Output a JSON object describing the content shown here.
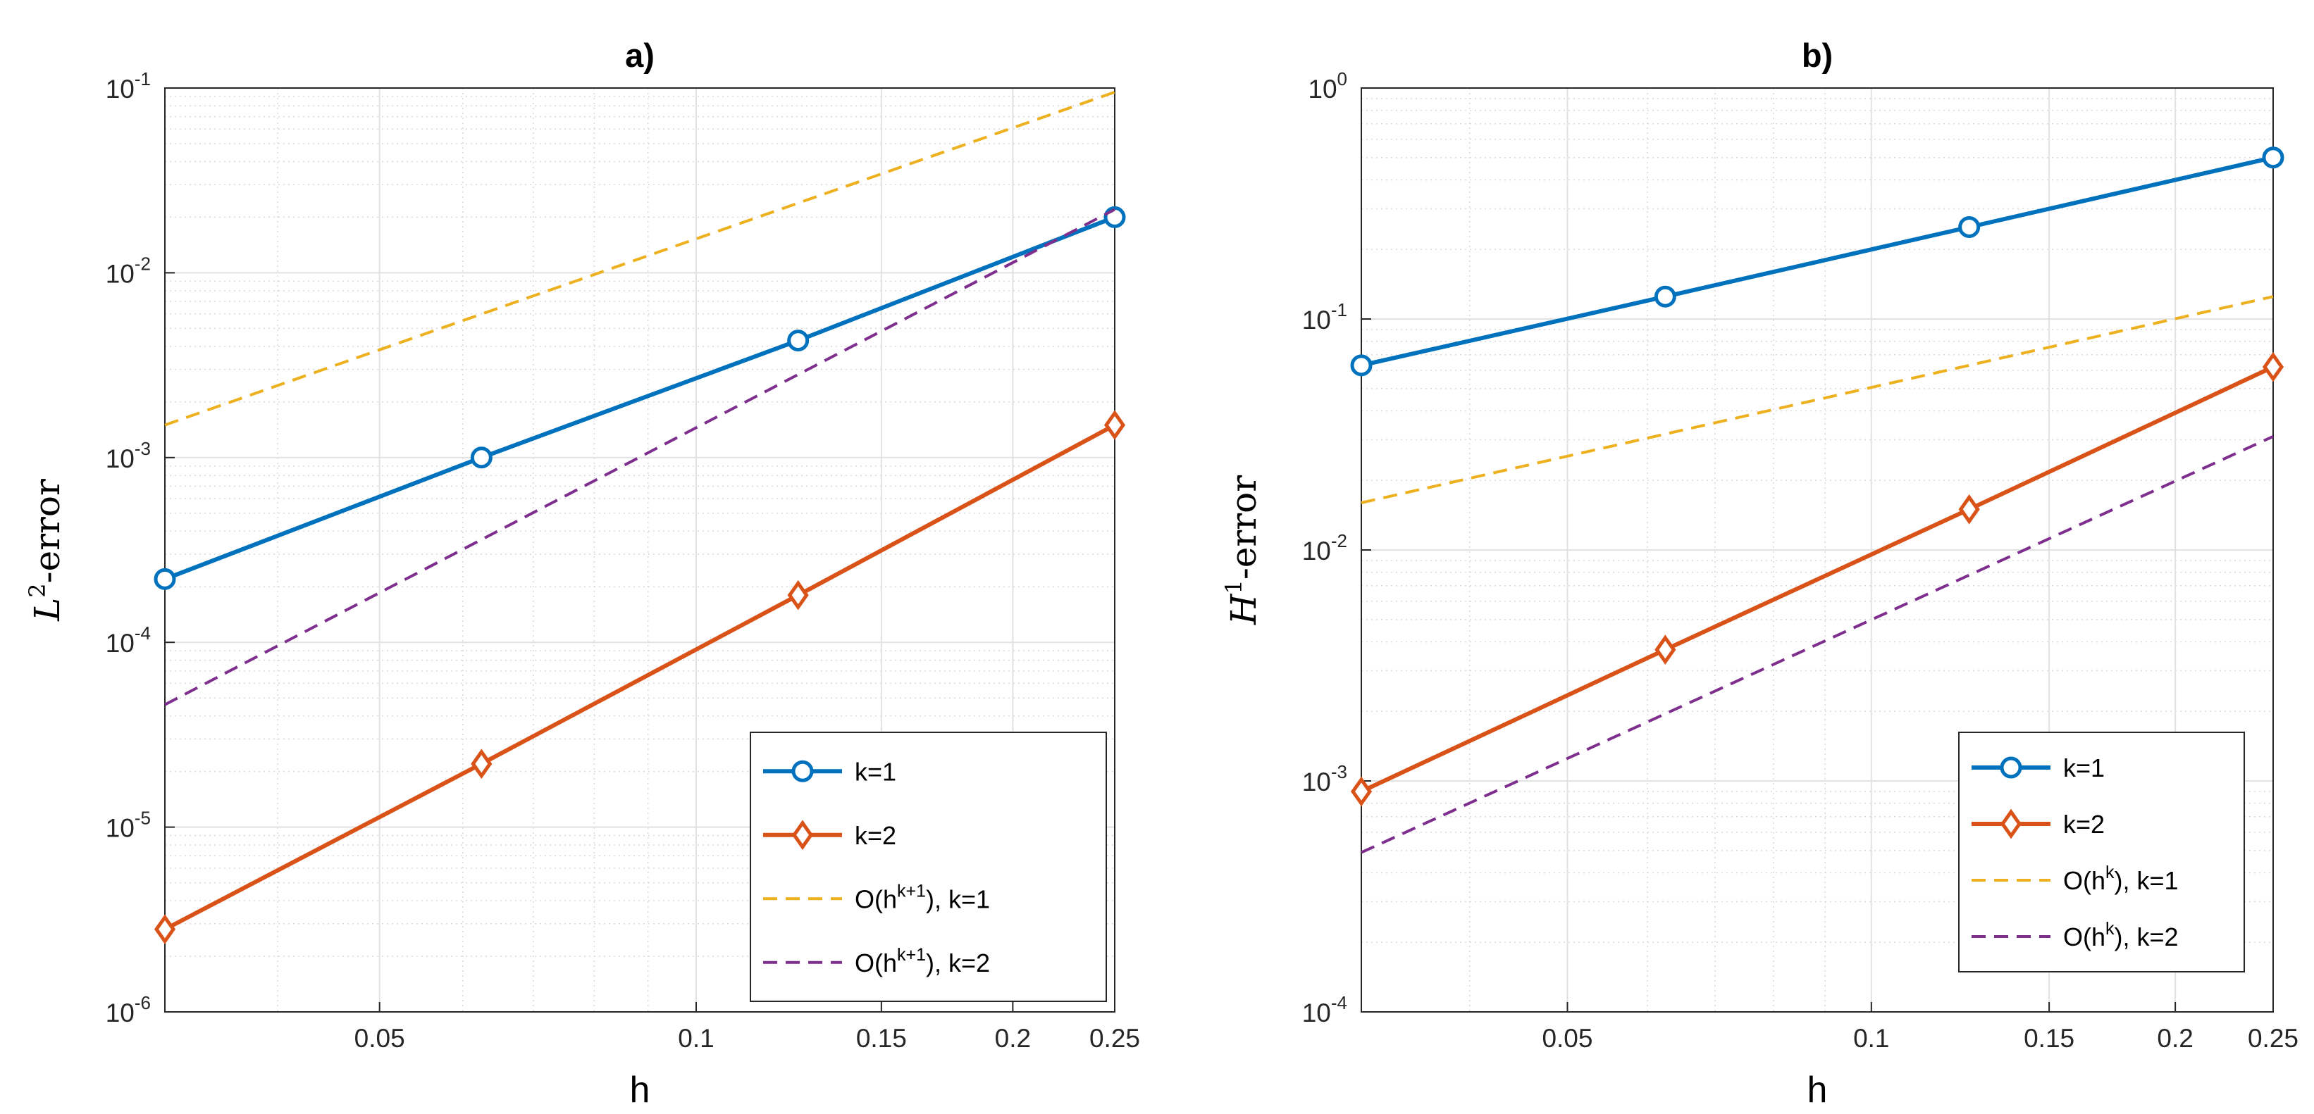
{
  "chart_data": [
    {
      "type": "line",
      "panel_title": "a)",
      "xlabel": "h",
      "ylabel": {
        "base": "L",
        "sup": "2",
        "rest": "-error"
      },
      "xscale": "log",
      "yscale": "log",
      "xlim": [
        0.03125,
        0.25
      ],
      "ylim": [
        1e-06,
        0.1
      ],
      "xticks": [
        0.05,
        0.1,
        0.15,
        0.2,
        0.25
      ],
      "xtick_labels": [
        "0.05",
        "0.1",
        "0.15",
        "0.2",
        "0.25"
      ],
      "yticks": [
        1e-06,
        1e-05,
        0.0001,
        0.001,
        0.01,
        0.1
      ],
      "ytick_labels": [
        {
          "base": "10",
          "exp": "-6"
        },
        {
          "base": "10",
          "exp": "-5"
        },
        {
          "base": "10",
          "exp": "-4"
        },
        {
          "base": "10",
          "exp": "-3"
        },
        {
          "base": "10",
          "exp": "-2"
        },
        {
          "base": "10",
          "exp": "-1"
        }
      ],
      "grid": true,
      "minor_grid": true,
      "legend_position": "bottom-right",
      "series": [
        {
          "name": "k=1",
          "label": {
            "text": "k=1"
          },
          "color": "#0072BD",
          "style": "solid",
          "marker": "circle",
          "x": [
            0.03125,
            0.0625,
            0.125,
            0.25
          ],
          "y": [
            0.00022,
            0.001,
            0.0043,
            0.02
          ]
        },
        {
          "name": "k=2",
          "label": {
            "text": "k=2"
          },
          "color": "#D95319",
          "style": "solid",
          "marker": "diamond",
          "x": [
            0.03125,
            0.0625,
            0.125,
            0.25
          ],
          "y": [
            2.8e-06,
            2.2e-05,
            0.00018,
            0.0015
          ]
        },
        {
          "name": "O(h^{k+1}), k=1",
          "label": {
            "pre": "O(h",
            "sup": "k+1",
            "post": "), k=1"
          },
          "color": "#EDB120",
          "style": "dashed",
          "marker": "none",
          "x": [
            0.03125,
            0.25
          ],
          "y": [
            0.0015,
            0.095
          ]
        },
        {
          "name": "O(h^{k+1}), k=2",
          "label": {
            "pre": "O(h",
            "sup": "k+1",
            "post": "), k=2"
          },
          "color": "#7E2F8E",
          "style": "dashed",
          "marker": "none",
          "x": [
            0.03125,
            0.25
          ],
          "y": [
            4.6e-05,
            0.022
          ]
        }
      ]
    },
    {
      "type": "line",
      "panel_title": "b)",
      "xlabel": "h",
      "ylabel": {
        "base": "H",
        "sup": "1",
        "rest": "-error"
      },
      "xscale": "log",
      "yscale": "log",
      "xlim": [
        0.03125,
        0.25
      ],
      "ylim": [
        0.0001,
        1
      ],
      "xticks": [
        0.05,
        0.1,
        0.15,
        0.2,
        0.25
      ],
      "xtick_labels": [
        "0.05",
        "0.1",
        "0.15",
        "0.2",
        "0.25"
      ],
      "yticks": [
        0.0001,
        0.001,
        0.01,
        0.1,
        1
      ],
      "ytick_labels": [
        {
          "base": "10",
          "exp": "-4"
        },
        {
          "base": "10",
          "exp": "-3"
        },
        {
          "base": "10",
          "exp": "-2"
        },
        {
          "base": "10",
          "exp": "-1"
        },
        {
          "base": "10",
          "exp": "0"
        }
      ],
      "grid": true,
      "minor_grid": true,
      "legend_position": "bottom-right",
      "series": [
        {
          "name": "k=1",
          "label": {
            "text": "k=1"
          },
          "color": "#0072BD",
          "style": "solid",
          "marker": "circle",
          "x": [
            0.03125,
            0.0625,
            0.125,
            0.25
          ],
          "y": [
            0.063,
            0.125,
            0.25,
            0.5
          ]
        },
        {
          "name": "k=2",
          "label": {
            "text": "k=2"
          },
          "color": "#D95319",
          "style": "solid",
          "marker": "diamond",
          "x": [
            0.03125,
            0.0625,
            0.125,
            0.25
          ],
          "y": [
            0.0009,
            0.0037,
            0.015,
            0.062
          ]
        },
        {
          "name": "O(h^k), k=1",
          "label": {
            "pre": "O(h",
            "sup": "k",
            "post": "), k=1"
          },
          "color": "#EDB120",
          "style": "dashed",
          "marker": "none",
          "x": [
            0.03125,
            0.25
          ],
          "y": [
            0.016,
            0.125
          ]
        },
        {
          "name": "O(h^k), k=2",
          "label": {
            "pre": "O(h",
            "sup": "k",
            "post": "), k=2"
          },
          "color": "#7E2F8E",
          "style": "dashed",
          "marker": "none",
          "x": [
            0.03125,
            0.25
          ],
          "y": [
            0.00049,
            0.031
          ]
        }
      ]
    }
  ]
}
